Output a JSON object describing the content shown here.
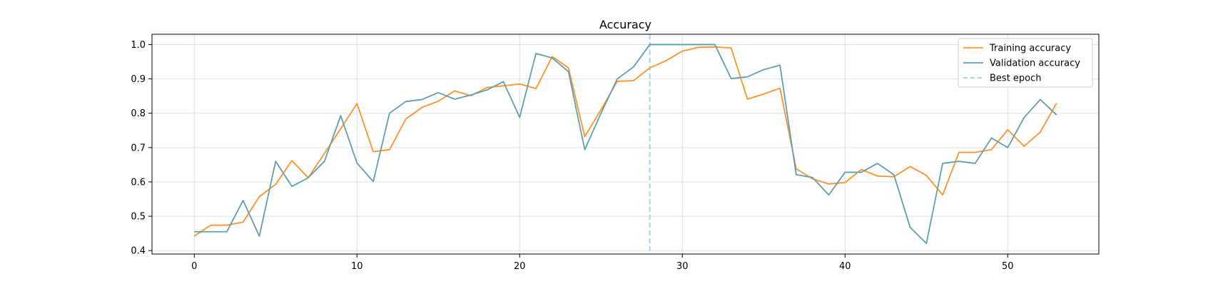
{
  "chart_data": {
    "type": "line",
    "title": "Accuracy",
    "xlabel": "",
    "ylabel": "",
    "xlim": [
      -2.6,
      55.6
    ],
    "ylim": [
      0.39,
      1.03
    ],
    "xticks": [
      0,
      10,
      20,
      30,
      40,
      50
    ],
    "yticks": [
      0.4,
      0.5,
      0.6,
      0.7,
      0.8,
      0.9,
      1.0
    ],
    "ytick_labels": [
      "0.4",
      "0.5",
      "0.6",
      "0.7",
      "0.8",
      "0.9",
      "1.0"
    ],
    "grid": true,
    "legend_position": "top-right",
    "x": [
      0,
      1,
      2,
      3,
      4,
      5,
      6,
      7,
      8,
      9,
      10,
      11,
      12,
      13,
      14,
      15,
      16,
      17,
      18,
      19,
      20,
      21,
      22,
      23,
      24,
      25,
      26,
      27,
      28,
      29,
      30,
      31,
      32,
      33,
      34,
      35,
      36,
      37,
      38,
      39,
      40,
      41,
      42,
      43,
      44,
      45,
      46,
      47,
      48,
      49,
      50,
      51,
      52,
      53
    ],
    "series": [
      {
        "name": "Training accuracy",
        "color": "#ff922b",
        "style": "solid",
        "values": [
          0.442,
          0.474,
          0.474,
          0.483,
          0.557,
          0.593,
          0.662,
          0.612,
          0.683,
          0.755,
          0.828,
          0.688,
          0.694,
          0.783,
          0.817,
          0.835,
          0.865,
          0.851,
          0.875,
          0.88,
          0.885,
          0.872,
          0.965,
          0.932,
          0.732,
          0.81,
          0.893,
          0.895,
          0.932,
          0.953,
          0.981,
          0.992,
          0.993,
          0.99,
          0.841,
          0.856,
          0.873,
          0.638,
          0.609,
          0.594,
          0.598,
          0.636,
          0.617,
          0.615,
          0.645,
          0.619,
          0.562,
          0.686,
          0.686,
          0.694,
          0.752,
          0.704,
          0.745,
          0.829
        ]
      },
      {
        "name": "Validation accuracy",
        "color": "#5f9fb1",
        "style": "solid",
        "values": [
          0.455,
          0.455,
          0.455,
          0.546,
          0.442,
          0.66,
          0.587,
          0.612,
          0.66,
          0.793,
          0.655,
          0.601,
          0.8,
          0.834,
          0.84,
          0.86,
          0.841,
          0.853,
          0.868,
          0.892,
          0.788,
          0.974,
          0.961,
          0.921,
          0.694,
          0.8,
          0.9,
          0.935,
          1.0,
          1.0,
          1.0,
          1.0,
          1.0,
          0.901,
          0.906,
          0.927,
          0.94,
          0.621,
          0.613,
          0.562,
          0.628,
          0.628,
          0.654,
          0.621,
          0.468,
          0.421,
          0.654,
          0.66,
          0.654,
          0.728,
          0.7,
          0.787,
          0.84,
          0.795
        ]
      }
    ],
    "vlines": [
      {
        "name": "Best epoch",
        "x": 28,
        "color": "#a9d5dc",
        "style": "dashed"
      }
    ],
    "legend": [
      "Training accuracy",
      "Validation accuracy",
      "Best epoch"
    ]
  }
}
